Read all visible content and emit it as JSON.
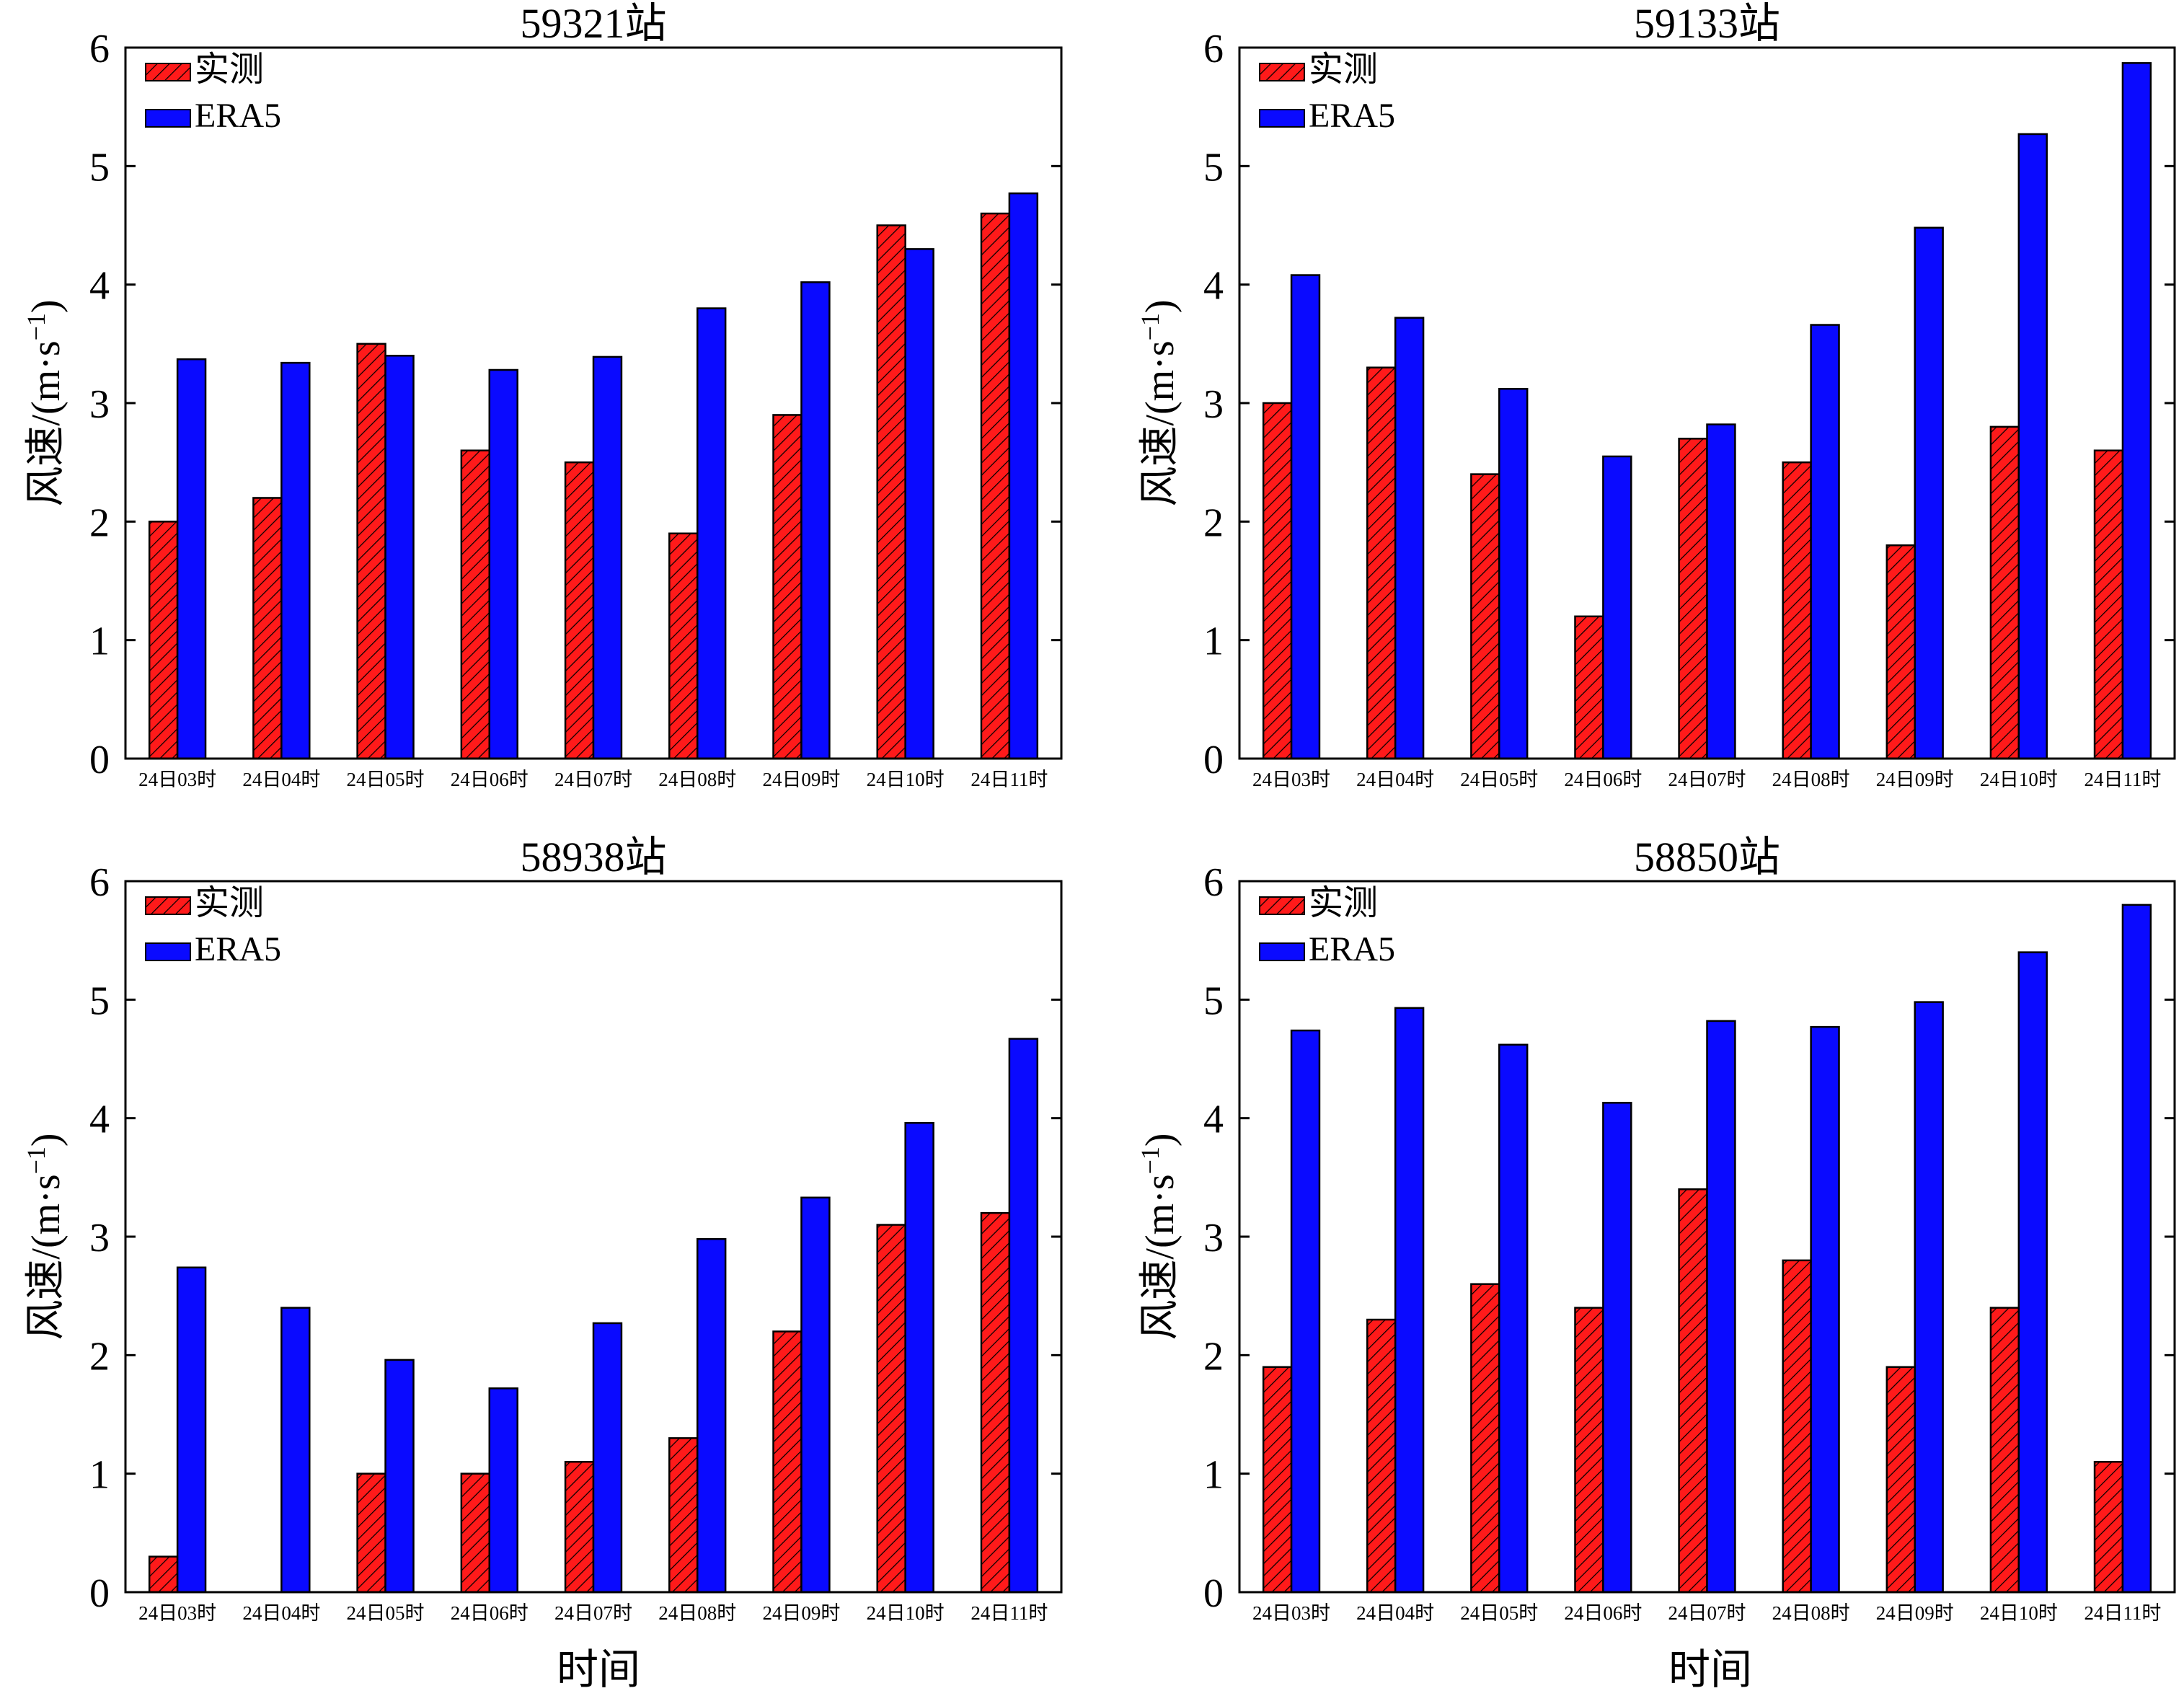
{
  "colors": {
    "observed": "#ff1a1a",
    "era5": "#0a0aff",
    "hatch": "#000000"
  },
  "legend": {
    "observed": "实测",
    "era5": "ERA5"
  },
  "ylabel_prefix": "风速/(m·s",
  "ylabel_exp": "−1",
  "ylabel_suffix": ")",
  "xlabel": "时间",
  "chart_data": [
    {
      "type": "bar",
      "title": "59321站",
      "categories": [
        "24日03时",
        "24日04时",
        "24日05时",
        "24日06时",
        "24日07时",
        "24日08时",
        "24日09时",
        "24日10时",
        "24日11时"
      ],
      "series": [
        {
          "name": "实测",
          "values": [
            2.0,
            2.2,
            3.5,
            2.6,
            2.5,
            1.9,
            2.9,
            4.5,
            4.6
          ]
        },
        {
          "name": "ERA5",
          "values": [
            3.37,
            3.34,
            3.4,
            3.28,
            3.39,
            3.8,
            4.02,
            4.3,
            4.77
          ]
        }
      ],
      "ylim": [
        0,
        6
      ],
      "yticks": [
        0,
        1,
        2,
        3,
        4,
        5,
        6
      ],
      "legend_position": "top-left",
      "grid": false
    },
    {
      "type": "bar",
      "title": "59133站",
      "categories": [
        "24日03时",
        "24日04时",
        "24日05时",
        "24日06时",
        "24日07时",
        "24日08时",
        "24日09时",
        "24日10时",
        "24日11时"
      ],
      "series": [
        {
          "name": "实测",
          "values": [
            3.0,
            3.3,
            2.4,
            1.2,
            2.7,
            2.5,
            1.8,
            2.8,
            2.6
          ]
        },
        {
          "name": "ERA5",
          "values": [
            4.08,
            3.72,
            3.12,
            2.55,
            2.82,
            3.66,
            4.48,
            5.27,
            5.87
          ]
        }
      ],
      "ylim": [
        0,
        6
      ],
      "yticks": [
        0,
        1,
        2,
        3,
        4,
        5,
        6
      ],
      "legend_position": "top-left",
      "grid": false
    },
    {
      "type": "bar",
      "title": "58938站",
      "categories": [
        "24日03时",
        "24日04时",
        "24日05时",
        "24日06时",
        "24日07时",
        "24日08时",
        "24日09时",
        "24日10时",
        "24日11时"
      ],
      "series": [
        {
          "name": "实测",
          "values": [
            0.3,
            0.0,
            1.0,
            1.0,
            1.1,
            1.3,
            2.2,
            3.1,
            3.2
          ]
        },
        {
          "name": "ERA5",
          "values": [
            2.74,
            2.4,
            1.96,
            1.72,
            2.27,
            2.98,
            3.33,
            3.96,
            4.67
          ]
        }
      ],
      "ylim": [
        0,
        6
      ],
      "yticks": [
        0,
        1,
        2,
        3,
        4,
        5,
        6
      ],
      "legend_position": "top-left",
      "grid": false
    },
    {
      "type": "bar",
      "title": "58850站",
      "categories": [
        "24日03时",
        "24日04时",
        "24日05时",
        "24日06时",
        "24日07时",
        "24日08时",
        "24日09时",
        "24日10时",
        "24日11时"
      ],
      "series": [
        {
          "name": "实测",
          "values": [
            1.9,
            2.3,
            2.6,
            2.4,
            3.4,
            2.8,
            1.9,
            2.4,
            1.1
          ]
        },
        {
          "name": "ERA5",
          "values": [
            4.74,
            4.93,
            4.62,
            4.13,
            4.82,
            4.77,
            4.98,
            5.4,
            5.8
          ]
        }
      ],
      "ylim": [
        0,
        6
      ],
      "yticks": [
        0,
        1,
        2,
        3,
        4,
        5,
        6
      ],
      "legend_position": "top-left",
      "grid": false
    }
  ]
}
